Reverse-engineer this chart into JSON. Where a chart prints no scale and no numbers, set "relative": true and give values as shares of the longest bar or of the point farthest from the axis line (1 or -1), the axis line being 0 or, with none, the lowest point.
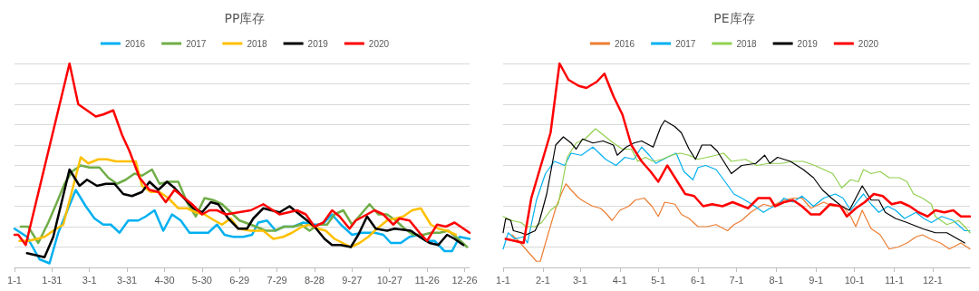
{
  "chart_data": [
    {
      "type": "line",
      "title": "PP库存",
      "relative": true,
      "grid": "y",
      "legend": "top",
      "xlim": [
        "--01-01",
        "--12-30"
      ],
      "xticks": [
        {
          "value": "--01-01",
          "label": "1-1"
        },
        {
          "value": "--01-31",
          "label": "1-31"
        },
        {
          "value": "--03-01",
          "label": "3-1"
        },
        {
          "value": "--03-31",
          "label": "3-31"
        },
        {
          "value": "--04-30",
          "label": "4-30"
        },
        {
          "value": "--05-30",
          "label": "5-30"
        },
        {
          "value": "--06-29",
          "label": "6-29"
        },
        {
          "value": "--07-29",
          "label": "7-29"
        },
        {
          "value": "--08-28",
          "label": "8-28"
        },
        {
          "value": "--09-27",
          "label": "9-27"
        },
        {
          "value": "--10-27",
          "label": "10-27"
        },
        {
          "value": "--11-26",
          "label": "11-26"
        },
        {
          "value": "--12-26",
          "label": "12-26"
        }
      ],
      "series": [
        {
          "name": "2016",
          "color": "#00b0f0",
          "x": [
            "--01-01",
            "--01-11",
            "--01-21",
            "--01-29",
            "--02-05",
            "--02-19",
            "--02-27",
            "--03-05",
            "--03-12",
            "--03-18",
            "--03-25",
            "--04-01",
            "--04-09",
            "--04-15",
            "--04-22",
            "--04-29",
            "--05-06",
            "--05-13",
            "--05-20",
            "--05-28",
            "--06-04",
            "--06-11",
            "--06-17",
            "--06-24",
            "--07-02",
            "--07-09",
            "--07-14",
            "--07-21",
            "--07-28",
            "--08-03",
            "--08-11",
            "--08-19",
            "--08-26",
            "--09-03",
            "--09-11",
            "--09-18",
            "--09-27",
            "--10-05",
            "--10-15",
            "--10-22",
            "--10-28",
            "--11-05",
            "--11-12",
            "--11-19",
            "--11-25",
            "--12-02",
            "--12-10",
            "--12-16",
            "--12-22",
            "--12-30"
          ],
          "values": [
            0.19,
            0.15,
            0.04,
            0.02,
            0.17,
            0.38,
            0.3,
            0.24,
            0.21,
            0.21,
            0.17,
            0.23,
            0.23,
            0.25,
            0.28,
            0.18,
            0.26,
            0.23,
            0.17,
            0.17,
            0.17,
            0.21,
            0.16,
            0.15,
            0.15,
            0.16,
            0.22,
            0.23,
            0.18,
            0.2,
            0.2,
            0.22,
            0.21,
            0.21,
            0.26,
            0.21,
            0.16,
            0.17,
            0.17,
            0.16,
            0.12,
            0.12,
            0.15,
            0.16,
            0.13,
            0.13,
            0.08,
            0.08,
            0.15,
            0.14
          ]
        },
        {
          "name": "2017",
          "color": "#70ad47",
          "x": [
            "--01-06",
            "--01-12",
            "--01-20",
            "--01-28",
            "--02-04",
            "--02-10",
            "--02-16",
            "--02-23",
            "--03-01",
            "--03-09",
            "--03-16",
            "--03-23",
            "--03-30",
            "--04-06",
            "--04-12",
            "--04-20",
            "--04-26",
            "--05-03",
            "--05-11",
            "--05-18",
            "--05-25",
            "--06-01",
            "--06-08",
            "--06-15",
            "--06-22",
            "--06-29",
            "--07-08",
            "--07-20",
            "--07-27",
            "--08-04",
            "--08-11",
            "--08-17",
            "--08-24",
            "--08-31",
            "--09-07",
            "--09-13",
            "--09-20",
            "--09-27",
            "--10-04",
            "--10-11",
            "--10-18",
            "--10-25",
            "--11-01",
            "--11-08",
            "--11-15",
            "--11-23",
            "--11-29",
            "--12-06",
            "--12-13",
            "--12-21",
            "--12-28"
          ],
          "values": [
            0.2,
            0.2,
            0.12,
            0.22,
            0.32,
            0.41,
            0.47,
            0.5,
            0.49,
            0.49,
            0.44,
            0.41,
            0.43,
            0.46,
            0.45,
            0.48,
            0.41,
            0.42,
            0.42,
            0.32,
            0.25,
            0.34,
            0.33,
            0.31,
            0.27,
            0.23,
            0.21,
            0.18,
            0.18,
            0.2,
            0.2,
            0.21,
            0.18,
            0.21,
            0.21,
            0.26,
            0.28,
            0.21,
            0.26,
            0.31,
            0.26,
            0.26,
            0.23,
            0.19,
            0.16,
            0.16,
            0.17,
            0.17,
            0.18,
            0.14,
            0.1
          ]
        },
        {
          "name": "2018",
          "color": "#ffc000",
          "x": [
            "--01-05",
            "--01-12",
            "--01-19",
            "--01-25",
            "--02-01",
            "--02-09",
            "--02-23",
            "--02-29",
            "--03-08",
            "--03-15",
            "--03-22",
            "--04-07",
            "--04-12",
            "--04-19",
            "--04-26",
            "--05-03",
            "--05-11",
            "--05-18",
            "--05-25",
            "--06-01",
            "--06-09",
            "--06-15",
            "--06-22",
            "--06-28",
            "--07-08",
            "--07-18",
            "--07-26",
            "--08-03",
            "--08-10",
            "--08-18",
            "--08-24",
            "--08-31",
            "--09-06",
            "--09-13",
            "--09-26",
            "--10-03",
            "--10-10",
            "--10-17",
            "--10-25",
            "--11-01",
            "--11-07",
            "--11-14",
            "--11-21",
            "--11-29",
            "--12-05",
            "--12-12",
            "--12-19"
          ],
          "values": [
            0.13,
            0.13,
            0.14,
            0.15,
            0.18,
            0.21,
            0.54,
            0.51,
            0.53,
            0.53,
            0.52,
            0.52,
            0.4,
            0.37,
            0.37,
            0.34,
            0.29,
            0.29,
            0.27,
            0.26,
            0.23,
            0.21,
            0.24,
            0.19,
            0.18,
            0.18,
            0.14,
            0.15,
            0.17,
            0.2,
            0.21,
            0.19,
            0.18,
            0.14,
            0.1,
            0.12,
            0.15,
            0.19,
            0.23,
            0.24,
            0.25,
            0.28,
            0.29,
            0.21,
            0.19,
            0.18,
            0.16
          ]
        },
        {
          "name": "2019",
          "color": "#000000",
          "x": [
            "--01-11",
            "--01-25",
            "--02-01",
            "--02-14",
            "--02-22",
            "--02-28",
            "--03-07",
            "--03-14",
            "--03-21",
            "--03-28",
            "--04-04",
            "--04-12",
            "--04-18",
            "--04-25",
            "--05-02",
            "--05-08",
            "--05-14",
            "--05-23",
            "--05-30",
            "--06-06",
            "--06-12",
            "--06-20",
            "--06-28",
            "--07-05",
            "--07-10",
            "--07-18",
            "--07-31",
            "--08-08",
            "--08-16",
            "--08-28",
            "--09-05",
            "--09-11",
            "--09-18",
            "--09-26",
            "--10-02",
            "--10-09",
            "--10-16",
            "--10-25",
            "--10-31",
            "--11-13",
            "--11-20",
            "--11-28",
            "--12-05",
            "--12-12",
            "--12-18",
            "--12-25"
          ],
          "values": [
            0.07,
            0.05,
            0.15,
            0.48,
            0.4,
            0.43,
            0.4,
            0.41,
            0.41,
            0.36,
            0.35,
            0.37,
            0.42,
            0.38,
            0.42,
            0.39,
            0.35,
            0.29,
            0.27,
            0.32,
            0.31,
            0.24,
            0.19,
            0.19,
            0.24,
            0.29,
            0.27,
            0.3,
            0.26,
            0.2,
            0.14,
            0.11,
            0.11,
            0.1,
            0.16,
            0.25,
            0.19,
            0.18,
            0.19,
            0.18,
            0.15,
            0.12,
            0.11,
            0.16,
            0.14,
            0.11
          ]
        },
        {
          "name": "2020",
          "color": "#ff0000",
          "x": [
            "--01-01",
            "--01-04",
            "--01-10",
            "--02-14",
            "--02-21",
            "--02-28",
            "--03-06",
            "--03-12",
            "--03-20",
            "--03-27",
            "--04-02",
            "--04-10",
            "--04-18",
            "--04-25",
            "--05-01",
            "--05-08",
            "--05-14",
            "--05-22",
            "--05-30",
            "--06-05",
            "--06-11",
            "--06-18",
            "--06-28",
            "--07-08",
            "--07-18",
            "--07-31",
            "--08-14",
            "--08-21",
            "--08-28",
            "--09-04",
            "--09-11",
            "--09-17",
            "--09-25",
            "--09-30",
            "--10-15",
            "--10-22",
            "--10-30",
            "--11-04",
            "--11-12",
            "--11-20",
            "--11-26",
            "--12-04",
            "--12-11",
            "--12-18",
            "--12-30"
          ],
          "values": [
            0.16,
            0.16,
            0.11,
            1.0,
            0.8,
            0.77,
            0.74,
            0.75,
            0.77,
            0.65,
            0.57,
            0.44,
            0.38,
            0.37,
            0.32,
            0.38,
            0.35,
            0.31,
            0.26,
            0.28,
            0.28,
            0.26,
            0.27,
            0.28,
            0.31,
            0.26,
            0.28,
            0.26,
            0.2,
            0.22,
            0.28,
            0.25,
            0.19,
            0.23,
            0.28,
            0.26,
            0.21,
            0.24,
            0.23,
            0.17,
            0.13,
            0.21,
            0.2,
            0.22,
            0.17
          ]
        }
      ]
    },
    {
      "type": "line",
      "title": "PE库存",
      "relative": true,
      "grid": "y",
      "legend": "top",
      "xlim": [
        "--01-01",
        "--12-30"
      ],
      "xticks": [
        {
          "value": "--01-01",
          "label": "1-1"
        },
        {
          "value": "--02-01",
          "label": "2-1"
        },
        {
          "value": "--03-01",
          "label": "3-1"
        },
        {
          "value": "--04-01",
          "label": "4-1"
        },
        {
          "value": "--05-01",
          "label": "5-1"
        },
        {
          "value": "--06-01",
          "label": "6-1"
        },
        {
          "value": "--07-01",
          "label": "7-1"
        },
        {
          "value": "--08-01",
          "label": "8-1"
        },
        {
          "value": "--09-01",
          "label": "9-1"
        },
        {
          "value": "--10-01",
          "label": "10-1"
        },
        {
          "value": "--11-01",
          "label": "11-1"
        },
        {
          "value": "--12-01",
          "label": "12-1"
        }
      ],
      "series": [
        {
          "name": "2016",
          "color": "#ed7d31",
          "x": [
            "--01-08",
            "--01-13",
            "--01-20",
            "--01-27",
            "--01-30",
            "--02-04",
            "--02-11",
            "--02-16",
            "--02-19",
            "--02-23",
            "--02-29",
            "--03-05",
            "--03-11",
            "--03-17",
            "--03-22",
            "--03-26",
            "--04-01",
            "--04-08",
            "--04-13",
            "--04-20",
            "--04-26",
            "--05-01",
            "--05-06",
            "--05-14",
            "--05-19",
            "--05-25",
            "--06-01",
            "--06-08",
            "--06-15",
            "--06-24",
            "--06-29",
            "--07-05",
            "--07-12",
            "--07-22",
            "--07-28",
            "--08-07",
            "--08-14",
            "--08-21",
            "--08-28",
            "--09-07",
            "--09-14",
            "--09-22",
            "--09-28",
            "--10-02",
            "--10-07",
            "--10-14",
            "--10-21",
            "--10-28",
            "--11-04",
            "--11-11",
            "--11-18",
            "--11-23",
            "--11-29",
            "--12-07",
            "--12-14",
            "--12-23",
            "--12-30"
          ],
          "values": [
            0.16,
            0.13,
            0.08,
            0.03,
            0.03,
            0.14,
            0.29,
            0.37,
            0.41,
            0.38,
            0.34,
            0.32,
            0.3,
            0.29,
            0.26,
            0.23,
            0.28,
            0.3,
            0.33,
            0.34,
            0.3,
            0.25,
            0.32,
            0.31,
            0.26,
            0.24,
            0.2,
            0.2,
            0.21,
            0.18,
            0.21,
            0.23,
            0.27,
            0.31,
            0.3,
            0.33,
            0.34,
            0.34,
            0.29,
            0.32,
            0.3,
            0.3,
            0.25,
            0.2,
            0.28,
            0.19,
            0.16,
            0.09,
            0.1,
            0.12,
            0.15,
            0.16,
            0.14,
            0.12,
            0.09,
            0.12,
            0.09
          ]
        },
        {
          "name": "2017",
          "color": "#00b0f0",
          "x": [
            "--01-01",
            "--01-05",
            "--01-10",
            "--01-17",
            "--01-20",
            "--01-27",
            "--02-03",
            "--02-10",
            "--02-18",
            "--02-23",
            "--03-02",
            "--03-11",
            "--03-21",
            "--03-29",
            "--04-05",
            "--04-12",
            "--04-18",
            "--04-24",
            "--04-29",
            "--05-08",
            "--05-15",
            "--05-21",
            "--05-28",
            "--06-01",
            "--06-07",
            "--06-15",
            "--06-21",
            "--06-29",
            "--07-05",
            "--07-13",
            "--07-22",
            "--07-27",
            "--08-03",
            "--08-07",
            "--08-14",
            "--08-21",
            "--08-30",
            "--09-07",
            "--09-16",
            "--09-22",
            "--09-28",
            "--10-04",
            "--10-08",
            "--10-14",
            "--10-20",
            "--10-27",
            "--11-02",
            "--11-09",
            "--11-18",
            "--11-24",
            "--11-30",
            "--12-08",
            "--12-17",
            "--12-26",
            "--12-30"
          ],
          "values": [
            0.09,
            0.17,
            0.14,
            0.15,
            0.12,
            0.33,
            0.46,
            0.52,
            0.5,
            0.56,
            0.55,
            0.59,
            0.53,
            0.5,
            0.54,
            0.53,
            0.59,
            0.55,
            0.51,
            0.54,
            0.56,
            0.47,
            0.43,
            0.49,
            0.5,
            0.48,
            0.43,
            0.36,
            0.34,
            0.31,
            0.27,
            0.29,
            0.31,
            0.34,
            0.32,
            0.35,
            0.3,
            0.34,
            0.36,
            0.34,
            0.28,
            0.33,
            0.36,
            0.31,
            0.27,
            0.3,
            0.28,
            0.24,
            0.27,
            0.24,
            0.22,
            0.25,
            0.23,
            0.18,
            0.18
          ]
        },
        {
          "name": "2018",
          "color": "#92d050",
          "x": [
            "--01-01",
            "--01-08",
            "--01-15",
            "--01-19",
            "--01-26",
            "--01-31",
            "--02-07",
            "--02-13",
            "--02-20",
            "--02-27",
            "--03-05",
            "--03-13",
            "--03-19",
            "--03-27",
            "--04-03",
            "--04-10",
            "--04-15",
            "--04-21",
            "--04-27",
            "--05-04",
            "--05-11",
            "--05-18",
            "--05-25",
            "--06-01",
            "--06-08",
            "--06-15",
            "--06-21",
            "--06-27",
            "--07-08",
            "--07-17",
            "--07-26",
            "--08-05",
            "--08-14",
            "--08-22",
            "--08-31",
            "--09-07",
            "--09-14",
            "--09-21",
            "--09-28",
            "--10-04",
            "--10-08",
            "--10-14",
            "--10-21",
            "--10-28",
            "--11-05",
            "--11-11",
            "--11-16",
            "--11-23",
            "--11-30",
            "--12-03",
            "--12-12",
            "--12-21",
            "--12-26",
            "--12-30"
          ],
          "values": [
            0.25,
            0.23,
            0.22,
            0.2,
            0.2,
            0.22,
            0.28,
            0.31,
            0.54,
            0.61,
            0.63,
            0.68,
            0.65,
            0.61,
            0.58,
            0.58,
            0.52,
            0.54,
            0.52,
            0.53,
            0.55,
            0.56,
            0.55,
            0.53,
            0.54,
            0.55,
            0.56,
            0.52,
            0.53,
            0.5,
            0.51,
            0.51,
            0.52,
            0.52,
            0.5,
            0.48,
            0.46,
            0.39,
            0.43,
            0.42,
            0.48,
            0.46,
            0.47,
            0.44,
            0.44,
            0.42,
            0.36,
            0.34,
            0.31,
            0.25,
            0.21,
            0.23,
            0.2,
            0.17
          ]
        },
        {
          "name": "2019",
          "color": "#000000",
          "x": [
            "--01-01",
            "--01-03",
            "--01-07",
            "--01-09",
            "--01-15",
            "--01-19",
            "--01-26",
            "--01-29",
            "--02-04",
            "--02-11",
            "--02-17",
            "--02-23",
            "--02-27",
            "--03-03",
            "--03-11",
            "--03-19",
            "--03-27",
            "--03-30",
            "--04-06",
            "--04-12",
            "--04-18",
            "--04-27",
            "--05-03",
            "--05-06",
            "--05-14",
            "--05-19",
            "--05-25",
            "--05-30",
            "--06-04",
            "--06-11",
            "--06-16",
            "--06-22",
            "--06-27",
            "--07-05",
            "--07-16",
            "--07-23",
            "--07-27",
            "--08-02",
            "--08-12",
            "--08-22",
            "--08-30",
            "--09-06",
            "--09-13",
            "--09-21",
            "--09-27",
            "--10-07",
            "--10-14",
            "--10-20",
            "--10-25",
            "--11-02",
            "--11-11",
            "--11-23",
            "--12-03",
            "--12-12",
            "--12-26"
          ],
          "values": [
            0.17,
            0.24,
            0.23,
            0.18,
            0.17,
            0.16,
            0.18,
            0.22,
            0.36,
            0.6,
            0.64,
            0.61,
            0.58,
            0.63,
            0.61,
            0.62,
            0.6,
            0.55,
            0.59,
            0.61,
            0.62,
            0.59,
            0.69,
            0.72,
            0.69,
            0.66,
            0.58,
            0.53,
            0.6,
            0.6,
            0.57,
            0.51,
            0.46,
            0.5,
            0.51,
            0.55,
            0.51,
            0.54,
            0.52,
            0.48,
            0.44,
            0.38,
            0.34,
            0.3,
            0.28,
            0.4,
            0.33,
            0.33,
            0.27,
            0.24,
            0.22,
            0.19,
            0.17,
            0.17,
            0.12
          ]
        },
        {
          "name": "2020",
          "color": "#ff0000",
          "x": [
            "--01-03",
            "--01-17",
            "--01-23",
            "--02-07",
            "--02-14",
            "--02-21",
            "--02-29",
            "--03-06",
            "--03-14",
            "--03-20",
            "--03-27",
            "--04-03",
            "--04-10",
            "--04-18",
            "--04-25",
            "--05-01",
            "--05-08",
            "--05-15",
            "--05-22",
            "--05-29",
            "--06-05",
            "--06-12",
            "--06-20",
            "--06-28",
            "--07-10",
            "--07-18",
            "--07-27",
            "--07-31",
            "--08-07",
            "--08-14",
            "--08-21",
            "--08-28",
            "--09-04",
            "--09-12",
            "--09-20",
            "--09-25",
            "--10-02",
            "--10-09",
            "--10-16",
            "--10-23",
            "--10-30",
            "--11-06",
            "--11-13",
            "--11-20",
            "--11-27",
            "--12-03",
            "--12-10",
            "--12-17",
            "--12-23",
            "--12-30"
          ],
          "values": [
            0.14,
            0.12,
            0.34,
            0.66,
            1.0,
            0.92,
            0.89,
            0.88,
            0.91,
            0.95,
            0.84,
            0.75,
            0.6,
            0.52,
            0.47,
            0.42,
            0.5,
            0.43,
            0.36,
            0.35,
            0.3,
            0.31,
            0.3,
            0.32,
            0.29,
            0.34,
            0.34,
            0.3,
            0.32,
            0.33,
            0.3,
            0.26,
            0.26,
            0.31,
            0.3,
            0.25,
            0.29,
            0.32,
            0.36,
            0.35,
            0.31,
            0.32,
            0.3,
            0.27,
            0.25,
            0.28,
            0.27,
            0.28,
            0.25,
            0.25
          ]
        }
      ]
    }
  ]
}
